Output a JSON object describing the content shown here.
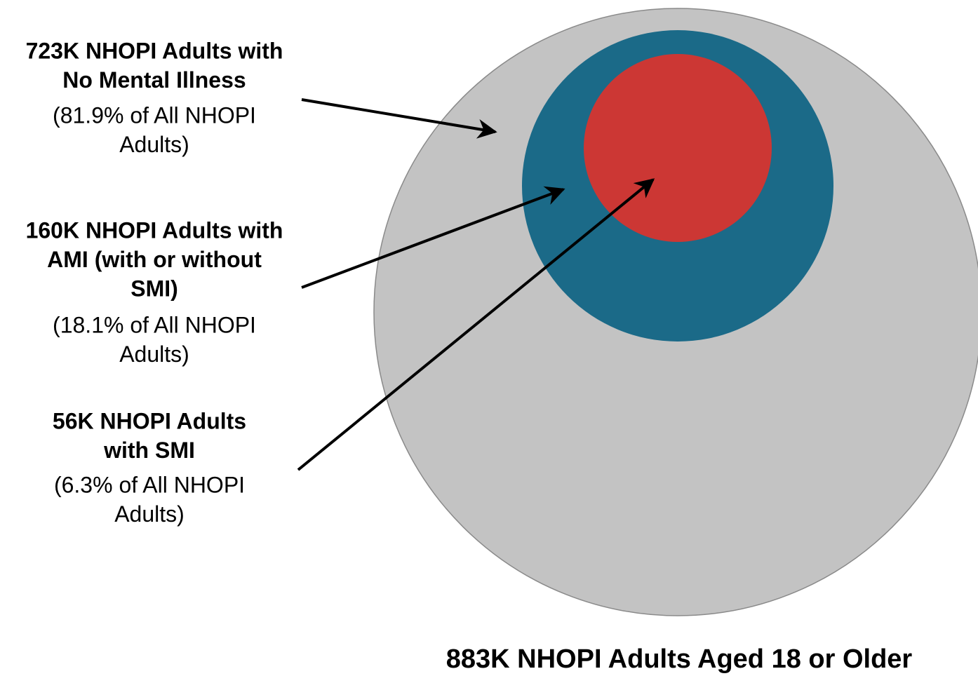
{
  "labels": [
    {
      "title": [
        "723K NHOPI Adults with",
        "No Mental Illness"
      ],
      "note": [
        "(81.9% of All NHOPI",
        "Adults)"
      ]
    },
    {
      "title": [
        "160K NHOPI Adults with",
        "AMI (with or without",
        "SMI)"
      ],
      "note": [
        "(18.1% of All NHOPI",
        "Adults)"
      ]
    },
    {
      "title": [
        "56K NHOPI Adults",
        "with SMI"
      ],
      "note": [
        "(6.3% of All NHOPI",
        "Adults)"
      ]
    }
  ],
  "footer": "883K NHOPI Adults Aged 18 or Older"
}
